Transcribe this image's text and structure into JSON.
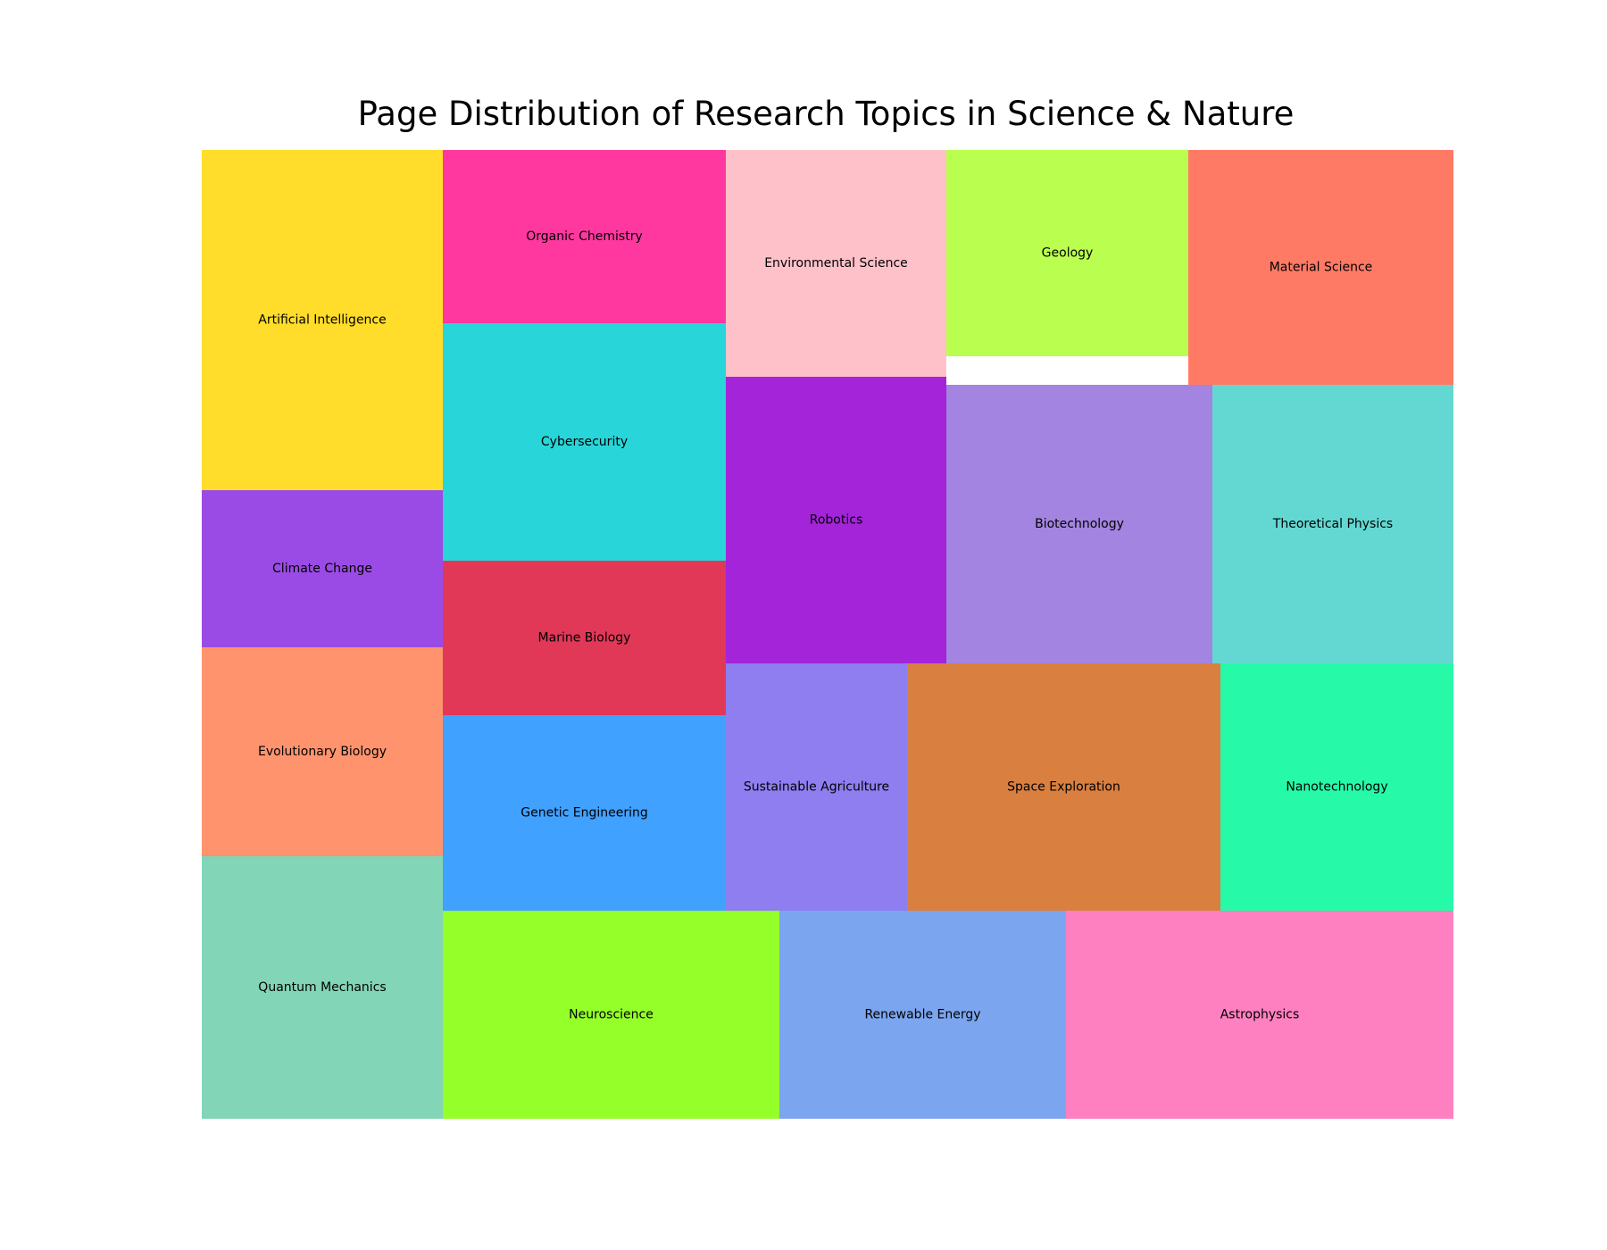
{
  "chart_data": {
    "type": "treemap",
    "title": "Page Distribution of Research Topics in Science & Nature",
    "items": [
      {
        "label": "Artificial Intelligence",
        "color": "#FFDD2A"
      },
      {
        "label": "Climate Change",
        "color": "#9B4BE5"
      },
      {
        "label": "Evolutionary Biology",
        "color": "#FF936D"
      },
      {
        "label": "Quantum Mechanics",
        "color": "#82D5B7"
      },
      {
        "label": "Organic Chemistry",
        "color": "#FF38A0"
      },
      {
        "label": "Cybersecurity",
        "color": "#28D5D8"
      },
      {
        "label": "Marine Biology",
        "color": "#E13858"
      },
      {
        "label": "Genetic Engineering",
        "color": "#41A1FF"
      },
      {
        "label": "Environmental Science",
        "color": "#FFC1C9"
      },
      {
        "label": "Robotics",
        "color": "#A324D9"
      },
      {
        "label": "Geology",
        "color": "#BAFF4F"
      },
      {
        "label": "Material Science",
        "color": "#FF7A64"
      },
      {
        "label": "Biotechnology",
        "color": "#A384E0"
      },
      {
        "label": "Theoretical Physics",
        "color": "#63D8D3"
      },
      {
        "label": "Sustainable Agriculture",
        "color": "#8E7EF0"
      },
      {
        "label": "Space Exploration",
        "color": "#D97F40"
      },
      {
        "label": "Nanotechnology",
        "color": "#26FAA8"
      },
      {
        "label": "Neuroscience",
        "color": "#94FF29"
      },
      {
        "label": "Renewable Energy",
        "color": "#7BA5EE"
      },
      {
        "label": "Astrophysics",
        "color": "#FF80C0"
      }
    ]
  }
}
